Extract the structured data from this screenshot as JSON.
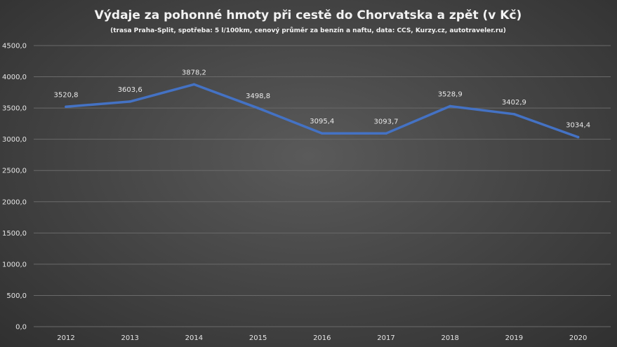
{
  "chart_data": {
    "type": "line",
    "title": "Výdaje za pohonné hmoty při cestě do Chorvatska a zpět (v Kč)",
    "subtitle": "(trasa Praha-Split, spotřeba: 5 l/100km, cenový průměr za benzín a naftu, data: CCS, Kurzy.cz, autotraveler.ru)",
    "categories": [
      "2012",
      "2013",
      "2014",
      "2015",
      "2016",
      "2017",
      "2018",
      "2019",
      "2020"
    ],
    "values": [
      3520.8,
      3603.6,
      3878.2,
      3498.8,
      3095.4,
      3093.7,
      3528.9,
      3402.9,
      3034.4
    ],
    "data_labels": [
      "3520,8",
      "3603,6",
      "3878,2",
      "3498,8",
      "3095,4",
      "3093,7",
      "3528,9",
      "3402,9",
      "3034,4"
    ],
    "yticks": [
      "0,0",
      "500,0",
      "1000,0",
      "1500,0",
      "2000,0",
      "2500,0",
      "3000,0",
      "3500,0",
      "4000,0",
      "4500,0"
    ],
    "ylim": [
      0,
      4500
    ],
    "ystep": 500,
    "grid": true,
    "legend": "none",
    "line_color": "#4472c4",
    "xlabel": "",
    "ylabel": ""
  }
}
